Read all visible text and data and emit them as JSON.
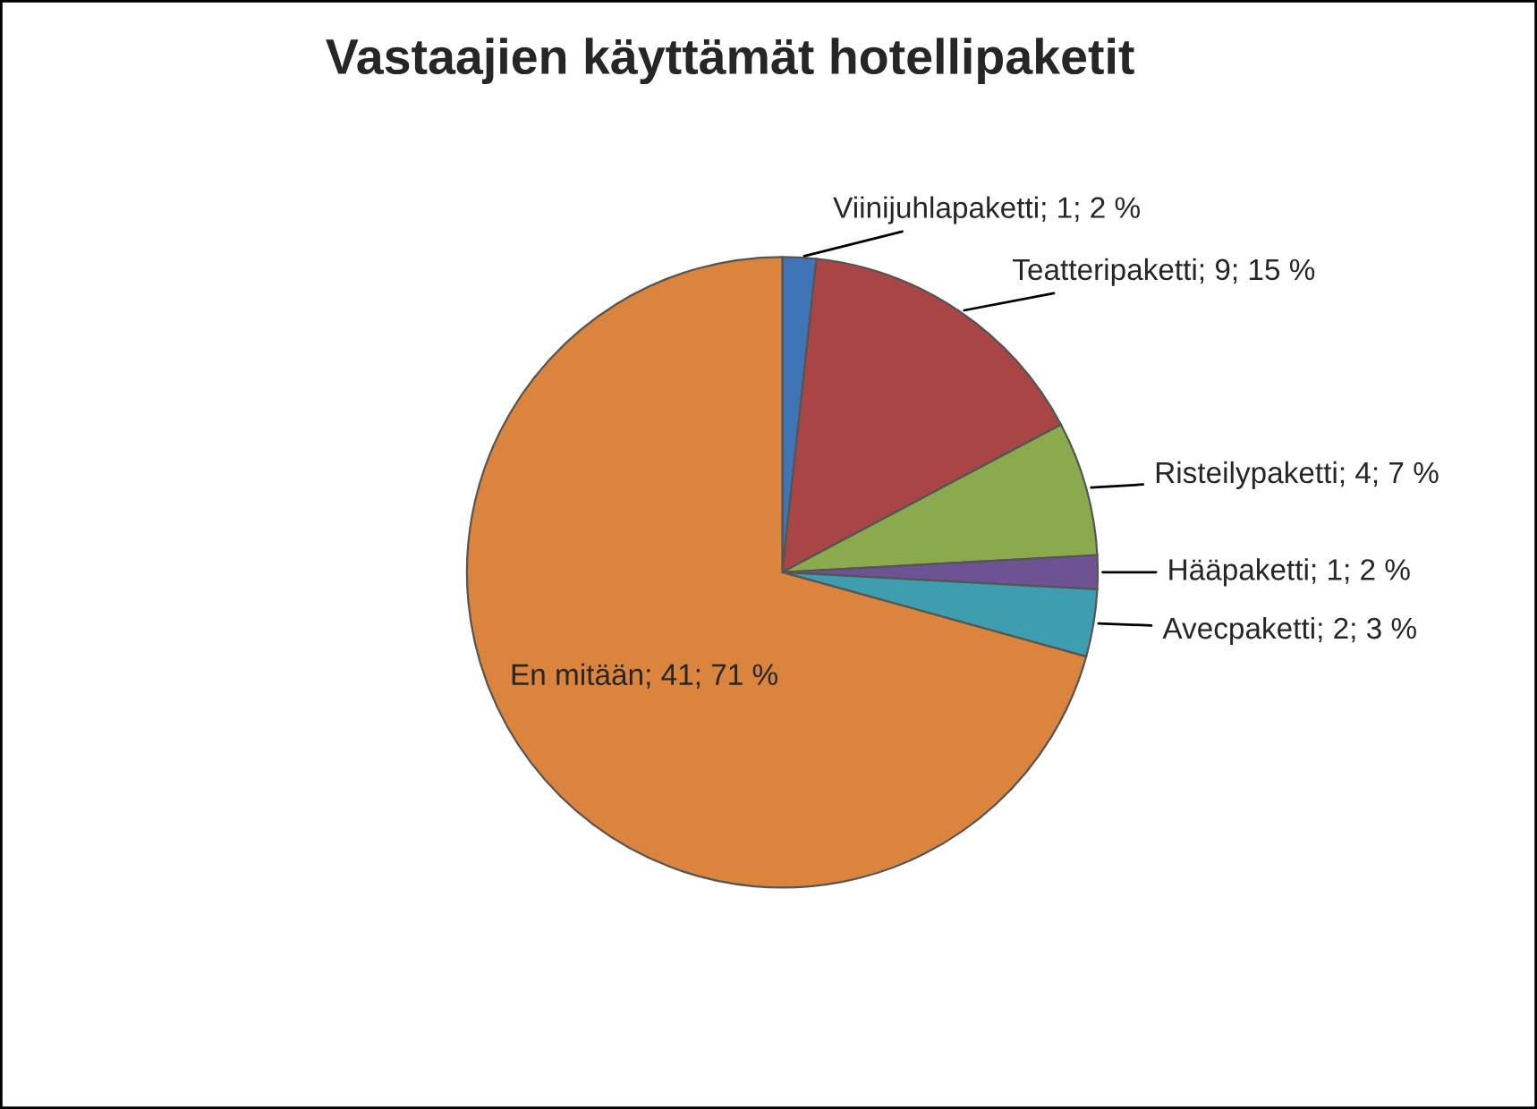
{
  "chart_data": {
    "type": "pie",
    "title": "Vastaajien käyttämät hotellipaketit",
    "categories": [
      "Viinijuhlapaketti",
      "Teatteripaketti",
      "Risteilypaketti",
      "Hääpaketti",
      "Avecpaketti",
      "En mitään"
    ],
    "values": [
      1,
      9,
      4,
      1,
      2,
      41
    ],
    "value_labels": [
      "1; 2 %",
      "9; 15 %",
      "4; 7 %",
      "1; 2 %",
      "2; 3 %",
      "41; 71 %"
    ],
    "colors": [
      "#3f75b6",
      "#aa4545",
      "#8aaa4d",
      "#6e5394",
      "#3f9db0",
      "#db843d"
    ],
    "legend": false
  }
}
